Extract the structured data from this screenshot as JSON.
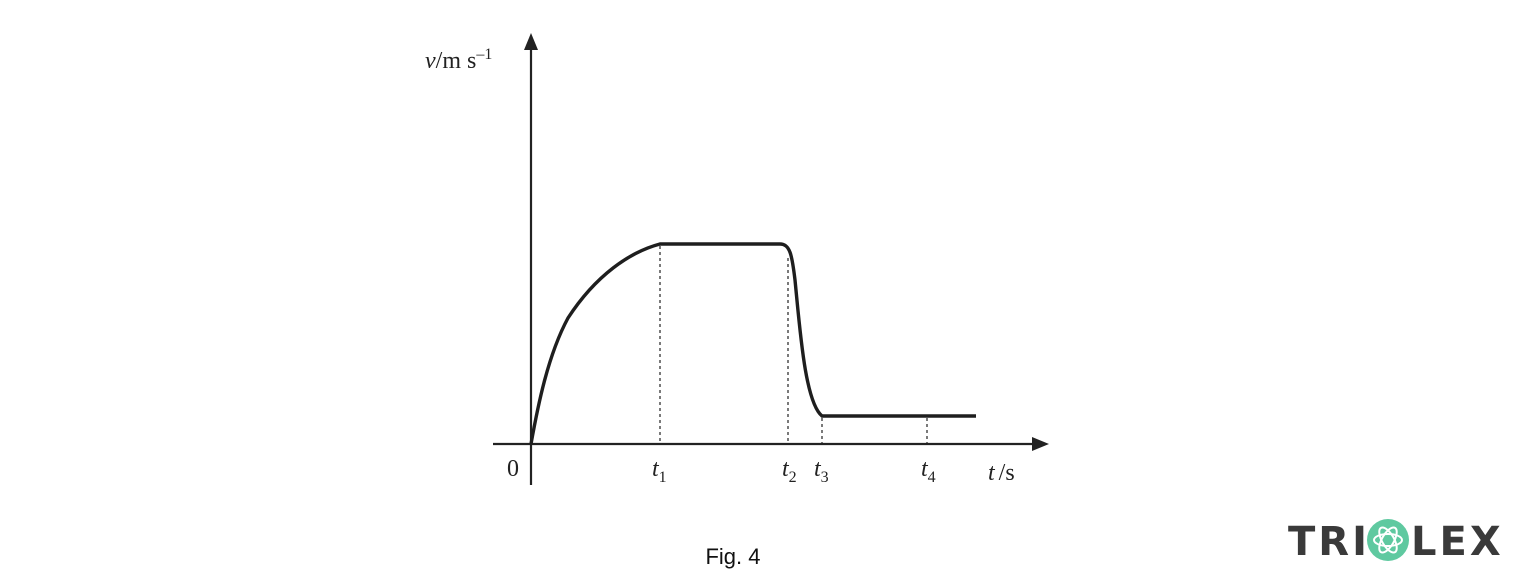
{
  "diagram": {
    "y_axis_label": {
      "symbol": "v",
      "unit": "/m s",
      "exponent": "–1"
    },
    "x_axis_label": {
      "symbol": "t",
      "unit": "/s"
    },
    "origin_label": "0",
    "time_marks": [
      {
        "symbol": "t",
        "subscript": "1"
      },
      {
        "symbol": "t",
        "subscript": "2"
      },
      {
        "symbol": "t",
        "subscript": "3"
      },
      {
        "symbol": "t",
        "subscript": "4"
      }
    ],
    "caption": "Fig. 4"
  },
  "logo": {
    "left": "TRI",
    "right": "LEX"
  }
}
